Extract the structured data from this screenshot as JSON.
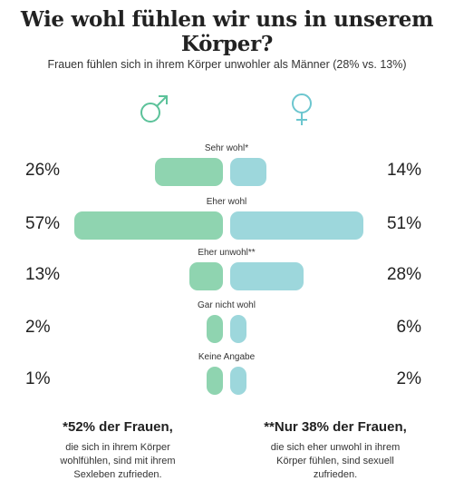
{
  "title": "Wie wohl fühlen wir uns in unserem Körper?",
  "subtitle": "Frauen fühlen sich in ihrem Körper unwohler als Männer (28% vs. 13%)",
  "colors": {
    "male": "#8fd4b0",
    "female": "#9dd7dc",
    "male_symbol": "#5cc29a",
    "female_symbol": "#6cc6cf"
  },
  "icons": {
    "male": "male-symbol-icon",
    "female": "female-symbol-icon"
  },
  "chart_data": {
    "type": "bar",
    "categories": [
      "Sehr wohl*",
      "Eher wohl",
      "Eher unwohl**",
      "Gar nicht wohl",
      "Keine Angabe"
    ],
    "series": [
      {
        "values": [
          26,
          57,
          13,
          2,
          1
        ],
        "labels": [
          "26%",
          "57%",
          "13%",
          "2%",
          "1%"
        ]
      },
      {
        "values": [
          14,
          51,
          28,
          6,
          2
        ],
        "labels": [
          "14%",
          "51%",
          "28%",
          "6%",
          "2%"
        ]
      }
    ],
    "unit": "%",
    "xlim": [
      0,
      60
    ]
  },
  "notes": [
    {
      "head": "*52% der Frauen,",
      "body": "die sich in ihrem Körper wohlfühlen, sind mit ihrem Sexleben zufrieden."
    },
    {
      "head": "**Nur 38% der Frauen,",
      "body": "die sich eher unwohl in ihrem Körper fühlen, sind sexuell zufrieden."
    }
  ]
}
